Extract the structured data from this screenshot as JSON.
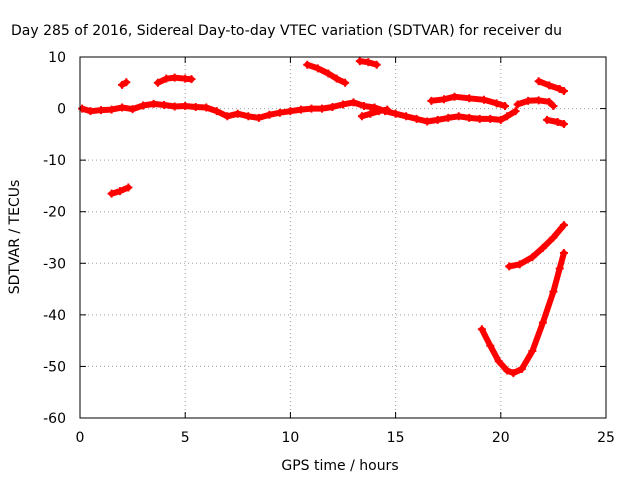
{
  "chart_data": {
    "type": "scatter",
    "title": "Day 285 of 2016, Sidereal Day-to-day VTEC variation (SDTVAR) for receiver du",
    "xlabel": "GPS time / hours",
    "ylabel": "SDTVAR / TECUs",
    "xlim": [
      0,
      25
    ],
    "ylim": [
      -60,
      10
    ],
    "xticks": [
      0,
      5,
      10,
      15,
      20,
      25
    ],
    "yticks": [
      -60,
      -50,
      -40,
      -30,
      -20,
      -10,
      0,
      10
    ],
    "grid": true,
    "marker": "plus",
    "color": "#ff0000",
    "series": [
      {
        "points": [
          [
            0.1,
            0.0
          ],
          [
            0.5,
            -0.5
          ],
          [
            1.0,
            -0.3
          ],
          [
            1.5,
            -0.2
          ],
          [
            2.0,
            0.2
          ],
          [
            2.5,
            -0.1
          ],
          [
            3.0,
            0.6
          ],
          [
            3.5,
            0.9
          ],
          [
            4.0,
            0.7
          ],
          [
            4.5,
            0.4
          ],
          [
            5.0,
            0.5
          ],
          [
            5.5,
            0.3
          ],
          [
            6.0,
            0.2
          ],
          [
            6.5,
            -0.5
          ],
          [
            7.0,
            -1.5
          ],
          [
            7.5,
            -1.0
          ],
          [
            8.0,
            -1.5
          ],
          [
            8.5,
            -1.8
          ],
          [
            9.0,
            -1.2
          ],
          [
            9.5,
            -0.8
          ],
          [
            10.0,
            -0.5
          ],
          [
            10.5,
            -0.2
          ],
          [
            11.0,
            0.0
          ],
          [
            11.5,
            0.0
          ],
          [
            12.0,
            0.3
          ],
          [
            12.5,
            0.8
          ],
          [
            13.0,
            1.2
          ],
          [
            13.5,
            0.5
          ],
          [
            14.0,
            0.2
          ],
          [
            14.5,
            -0.5
          ],
          [
            15.0,
            -1.0
          ],
          [
            15.5,
            -1.5
          ],
          [
            16.0,
            -2.0
          ],
          [
            16.5,
            -2.5
          ],
          [
            17.0,
            -2.2
          ],
          [
            17.5,
            -1.8
          ],
          [
            18.0,
            -1.5
          ],
          [
            18.5,
            -1.8
          ],
          [
            19.0,
            -2.0
          ],
          [
            19.5,
            -2.0
          ],
          [
            20.0,
            -2.2
          ],
          [
            20.3,
            -1.5
          ],
          [
            20.7,
            -0.5
          ]
        ]
      },
      {
        "points": [
          [
            2.0,
            4.6
          ],
          [
            2.2,
            5.1
          ]
        ]
      },
      {
        "points": [
          [
            3.7,
            5.0
          ],
          [
            4.1,
            5.8
          ],
          [
            4.5,
            6.0
          ],
          [
            5.0,
            5.8
          ],
          [
            5.3,
            5.7
          ]
        ]
      },
      {
        "points": [
          [
            1.5,
            -16.5
          ],
          [
            1.9,
            -16.0
          ],
          [
            2.3,
            -15.3
          ]
        ]
      },
      {
        "points": [
          [
            10.8,
            8.5
          ],
          [
            11.3,
            7.8
          ],
          [
            11.8,
            6.8
          ],
          [
            12.2,
            5.8
          ],
          [
            12.6,
            5.0
          ]
        ]
      },
      {
        "points": [
          [
            13.3,
            9.2
          ],
          [
            13.7,
            9.0
          ],
          [
            14.1,
            8.5
          ]
        ]
      },
      {
        "points": [
          [
            13.4,
            -1.5
          ],
          [
            13.8,
            -1.0
          ],
          [
            14.2,
            -0.5
          ],
          [
            14.6,
            -0.2
          ]
        ]
      },
      {
        "points": [
          [
            16.7,
            1.5
          ],
          [
            17.3,
            1.8
          ],
          [
            17.8,
            2.3
          ],
          [
            18.5,
            2.0
          ],
          [
            19.2,
            1.7
          ],
          [
            19.8,
            1.0
          ],
          [
            20.2,
            0.5
          ]
        ]
      },
      {
        "points": [
          [
            20.8,
            0.8
          ],
          [
            21.3,
            1.5
          ],
          [
            21.8,
            1.6
          ],
          [
            22.3,
            1.3
          ],
          [
            22.5,
            0.5
          ]
        ]
      },
      {
        "points": [
          [
            21.8,
            5.3
          ],
          [
            22.3,
            4.5
          ],
          [
            22.8,
            3.8
          ],
          [
            23.0,
            3.4
          ]
        ]
      },
      {
        "points": [
          [
            22.2,
            -2.2
          ],
          [
            22.7,
            -2.6
          ],
          [
            23.0,
            -3.0
          ]
        ]
      },
      {
        "points": [
          [
            20.4,
            -30.6
          ],
          [
            20.9,
            -30.2
          ],
          [
            21.5,
            -28.8
          ],
          [
            22.0,
            -27.0
          ],
          [
            22.5,
            -25.0
          ],
          [
            23.0,
            -22.6
          ]
        ]
      },
      {
        "points": [
          [
            19.1,
            -42.8
          ],
          [
            19.5,
            -46.0
          ],
          [
            19.9,
            -49.0
          ],
          [
            20.3,
            -50.8
          ],
          [
            20.6,
            -51.3
          ],
          [
            21.0,
            -50.5
          ],
          [
            21.5,
            -47.0
          ],
          [
            22.0,
            -41.5
          ],
          [
            22.5,
            -35.5
          ],
          [
            22.8,
            -31.0
          ],
          [
            23.0,
            -28.0
          ]
        ]
      }
    ]
  }
}
